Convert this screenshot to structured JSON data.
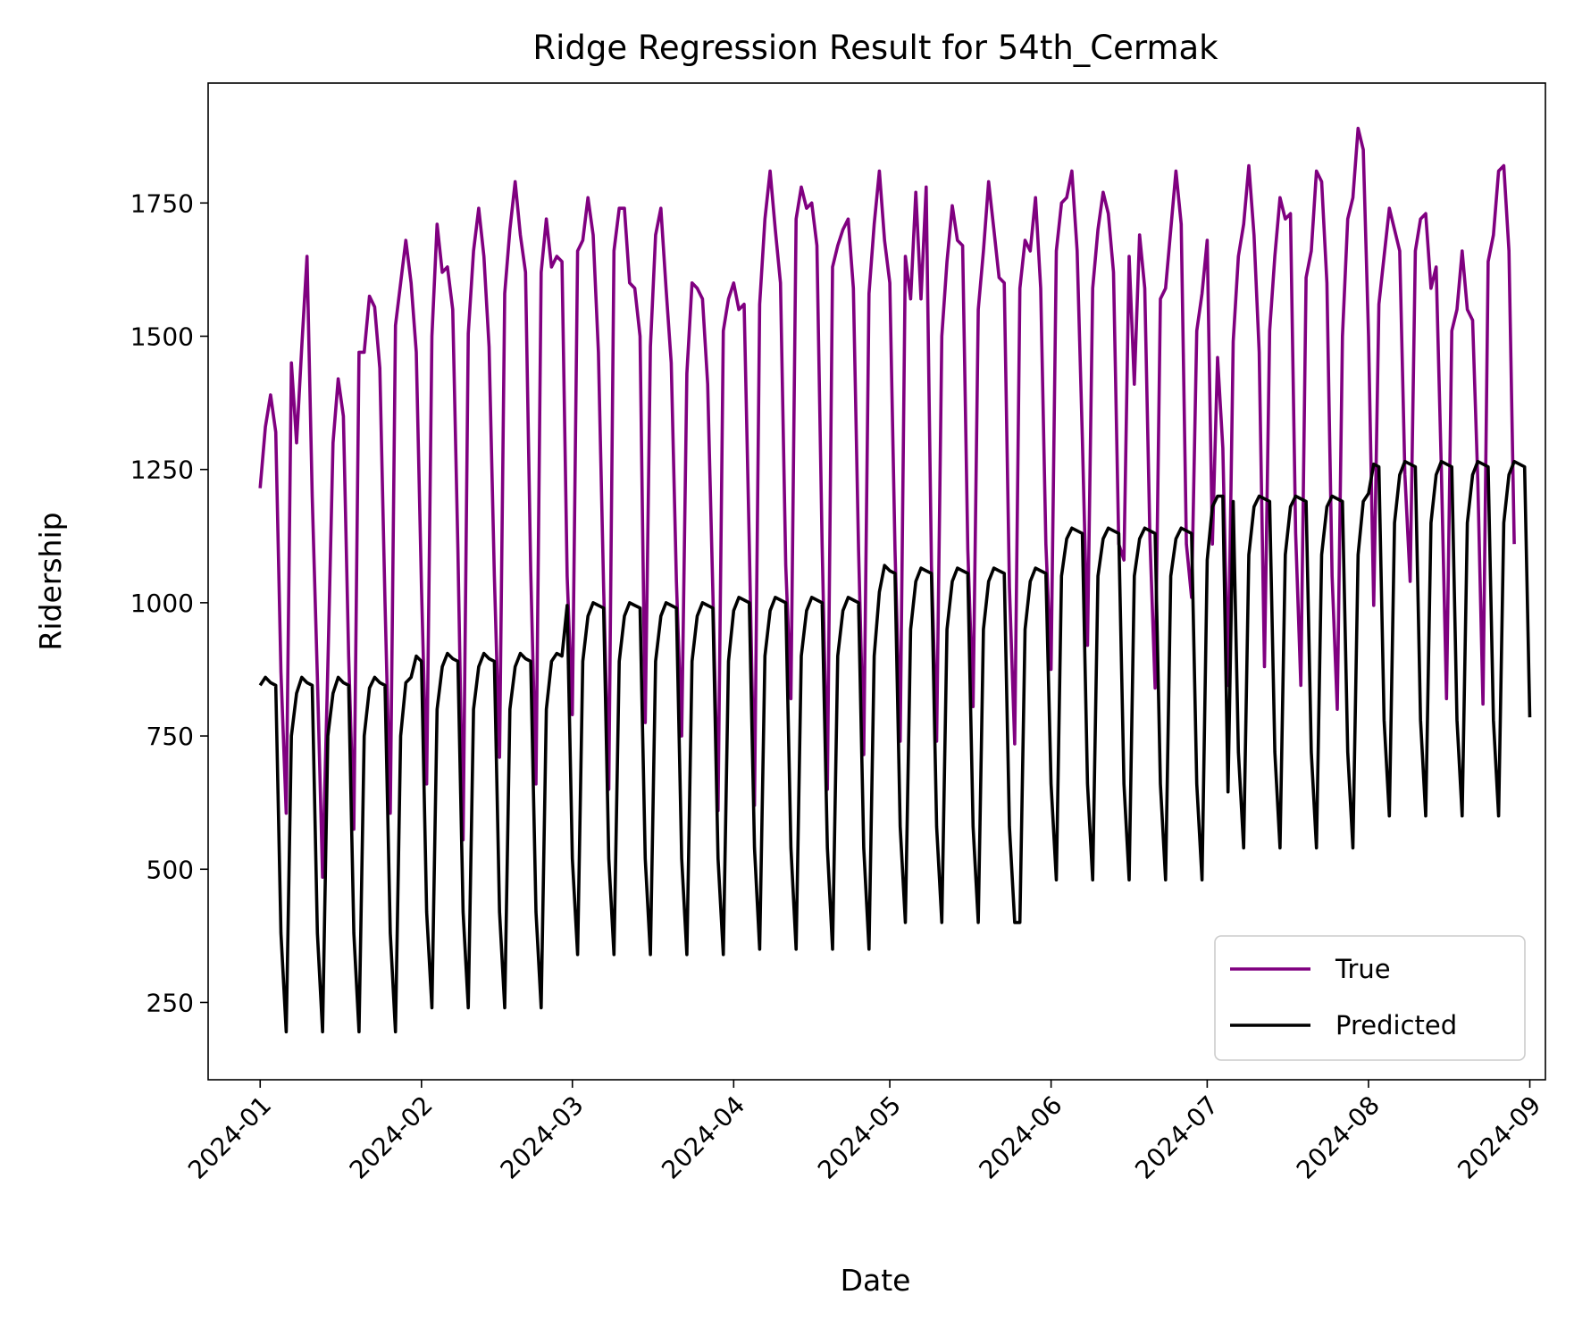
{
  "chart_data": {
    "type": "line",
    "title": "Ridge Regression Result for 54th_Cermak",
    "xlabel": "Date",
    "ylabel": "Ridership",
    "xlim": [
      "2023-12-22",
      "2024-09-04"
    ],
    "ylim": [
      105,
      1975
    ],
    "xticks": [
      "2024-01",
      "2024-02",
      "2024-03",
      "2024-04",
      "2024-05",
      "2024-06",
      "2024-07",
      "2024-08",
      "2024-09"
    ],
    "yticks": [
      250,
      500,
      750,
      1000,
      1250,
      1500,
      1750
    ],
    "x_start": "2024-01-01",
    "x_step": "1 day",
    "grid": false,
    "legend_position": "lower right",
    "series": [
      {
        "name": "True",
        "color": "#800080",
        "values": [
          1215,
          1330,
          1390,
          1320,
          870,
          605,
          1450,
          1300,
          1480,
          1650,
          1200,
          860,
          485,
          880,
          1300,
          1420,
          1350,
          900,
          575,
          1470,
          1470,
          1575,
          1555,
          1440,
          1000,
          605,
          1520,
          1600,
          1680,
          1600,
          1470,
          1030,
          660,
          1500,
          1710,
          1620,
          1630,
          1550,
          1100,
          555,
          1505,
          1660,
          1740,
          1650,
          1480,
          1050,
          710,
          1580,
          1700,
          1790,
          1690,
          1620,
          1060,
          660,
          1620,
          1720,
          1630,
          1650,
          1640,
          1050,
          790,
          1660,
          1680,
          1760,
          1690,
          1470,
          1030,
          650,
          1660,
          1740,
          1740,
          1600,
          1590,
          1500,
          775,
          1480,
          1690,
          1740,
          1590,
          1450,
          1040,
          750,
          1430,
          1600,
          1590,
          1570,
          1410,
          1020,
          610,
          1510,
          1570,
          1600,
          1550,
          1560,
          1110,
          620,
          1560,
          1720,
          1810,
          1700,
          1600,
          1070,
          820,
          1720,
          1780,
          1740,
          1750,
          1670,
          1110,
          650,
          1630,
          1670,
          1700,
          1720,
          1590,
          1100,
          715,
          1580,
          1710,
          1810,
          1680,
          1600,
          1100,
          740,
          1650,
          1570,
          1770,
          1570,
          1780,
          1070,
          740,
          1500,
          1640,
          1745,
          1680,
          1670,
          1100,
          805,
          1550,
          1660,
          1790,
          1700,
          1610,
          1600,
          1030,
          735,
          1590,
          1680,
          1660,
          1760,
          1590,
          1110,
          875,
          1660,
          1750,
          1760,
          1810,
          1660,
          1310,
          920,
          1590,
          1700,
          1770,
          1730,
          1620,
          1110,
          1080,
          1650,
          1410,
          1690,
          1590,
          1120,
          840,
          1570,
          1590,
          1700,
          1810,
          1710,
          1110,
          1010,
          1510,
          1580,
          1680,
          1110,
          1460,
          1290,
          845,
          1490,
          1650,
          1710,
          1820,
          1690,
          1470,
          880,
          1510,
          1650,
          1760,
          1720,
          1730,
          1130,
          845,
          1610,
          1660,
          1810,
          1790,
          1600,
          1050,
          800,
          1500,
          1720,
          1760,
          1890,
          1850,
          1500,
          995,
          1560,
          1650,
          1740,
          1700,
          1660,
          1240,
          1040,
          1660,
          1720,
          1730,
          1590,
          1630,
          1250,
          820,
          1510,
          1550,
          1660,
          1550,
          1530,
          1230,
          810,
          1640,
          1690,
          1810,
          1820,
          1660,
          1110
        ]
      },
      {
        "name": "Predicted",
        "color": "#000000",
        "values": [
          845,
          860,
          850,
          845,
          380,
          195,
          750,
          830,
          860,
          850,
          845,
          380,
          195,
          750,
          830,
          860,
          850,
          845,
          380,
          195,
          750,
          840,
          860,
          850,
          845,
          380,
          195,
          750,
          850,
          860,
          900,
          890,
          420,
          240,
          800,
          880,
          905,
          895,
          890,
          420,
          240,
          800,
          880,
          905,
          895,
          890,
          420,
          240,
          800,
          880,
          905,
          895,
          890,
          420,
          240,
          800,
          890,
          905,
          900,
          995,
          520,
          340,
          890,
          975,
          1000,
          995,
          990,
          520,
          340,
          890,
          975,
          1000,
          995,
          990,
          520,
          340,
          890,
          975,
          1000,
          995,
          990,
          520,
          340,
          890,
          975,
          1000,
          995,
          990,
          520,
          340,
          890,
          985,
          1010,
          1005,
          1000,
          540,
          350,
          900,
          985,
          1010,
          1005,
          1000,
          540,
          350,
          900,
          985,
          1010,
          1005,
          1000,
          540,
          350,
          900,
          985,
          1010,
          1005,
          1000,
          540,
          350,
          900,
          1020,
          1070,
          1060,
          1055,
          580,
          400,
          950,
          1040,
          1065,
          1060,
          1055,
          580,
          400,
          950,
          1040,
          1065,
          1060,
          1055,
          580,
          400,
          950,
          1040,
          1065,
          1060,
          1055,
          580,
          400,
          400,
          950,
          1040,
          1065,
          1060,
          1055,
          660,
          480,
          1050,
          1120,
          1140,
          1135,
          1130,
          660,
          480,
          1050,
          1120,
          1140,
          1135,
          1130,
          660,
          480,
          1050,
          1120,
          1140,
          1135,
          1130,
          660,
          480,
          1050,
          1120,
          1140,
          1135,
          1130,
          660,
          480,
          1080,
          1180,
          1200,
          1200,
          645,
          1190,
          720,
          540,
          1090,
          1180,
          1200,
          1195,
          1190,
          720,
          540,
          1090,
          1180,
          1200,
          1195,
          1190,
          720,
          540,
          1090,
          1180,
          1200,
          1195,
          1190,
          720,
          540,
          1090,
          1190,
          1205,
          1260,
          1255,
          780,
          600,
          1150,
          1240,
          1265,
          1260,
          1255,
          780,
          600,
          1150,
          1240,
          1265,
          1260,
          1255,
          780,
          600,
          1150,
          1240,
          1265,
          1260,
          1255,
          780,
          600,
          1150,
          1240,
          1265,
          1260,
          1255,
          785
        ]
      }
    ]
  }
}
